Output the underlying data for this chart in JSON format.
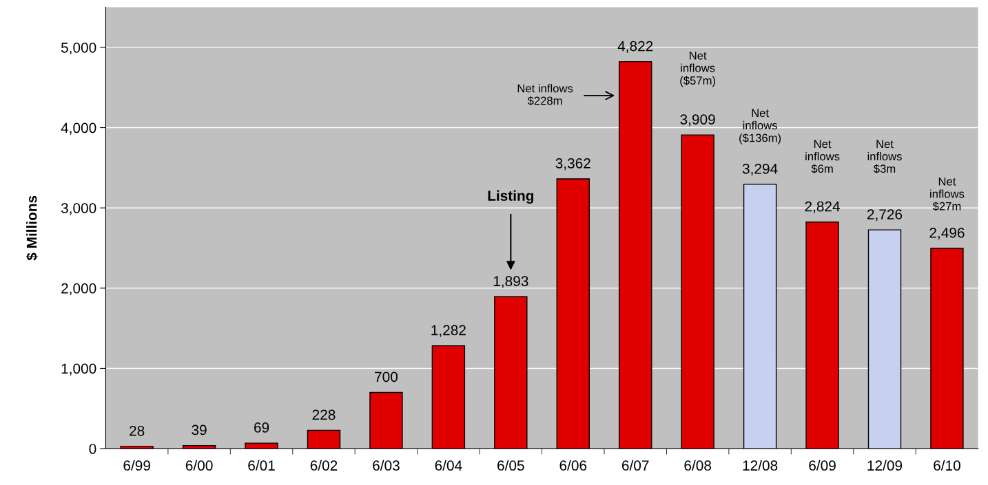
{
  "chart_data": {
    "type": "bar",
    "ylabel": "$ Millions",
    "categories": [
      "6/99",
      "6/00",
      "6/01",
      "6/02",
      "6/03",
      "6/04",
      "6/05",
      "6/06",
      "6/07",
      "6/08",
      "12/08",
      "6/09",
      "12/09",
      "6/10"
    ],
    "values": [
      28,
      39,
      69,
      228,
      700,
      1282,
      1893,
      3362,
      4822,
      3909,
      3294,
      2824,
      2726,
      2496
    ],
    "value_labels": [
      "28",
      "39",
      "69",
      "228",
      "700",
      "1,282",
      "1,893",
      "3,362",
      "4,822",
      "3,909",
      "3,294",
      "2,824",
      "2,726",
      "2,496"
    ],
    "colors": [
      "#e00000",
      "#e00000",
      "#e00000",
      "#e00000",
      "#e00000",
      "#e00000",
      "#e00000",
      "#e00000",
      "#e00000",
      "#e00000",
      "#c8d0f0",
      "#e00000",
      "#c8d0f0",
      "#e00000"
    ],
    "ylim": [
      0,
      5500
    ],
    "yticks": [
      {
        "value": 0,
        "label": "0"
      },
      {
        "value": 1000,
        "label": "1,000"
      },
      {
        "value": 2000,
        "label": "2,000"
      },
      {
        "value": 3000,
        "label": "3,000"
      },
      {
        "value": 4000,
        "label": "4,000"
      },
      {
        "value": 5000,
        "label": "5,000"
      }
    ],
    "grid": "y",
    "annotations": [
      "Listing",
      "Net inflows\n$228m",
      "Net\ninflows\n($57m)",
      "Net\ninflows\n($136m)",
      "Net\ninflows\n$6m",
      "Net\ninflows\n$3m",
      "Net\ninflows\n$27m"
    ]
  }
}
